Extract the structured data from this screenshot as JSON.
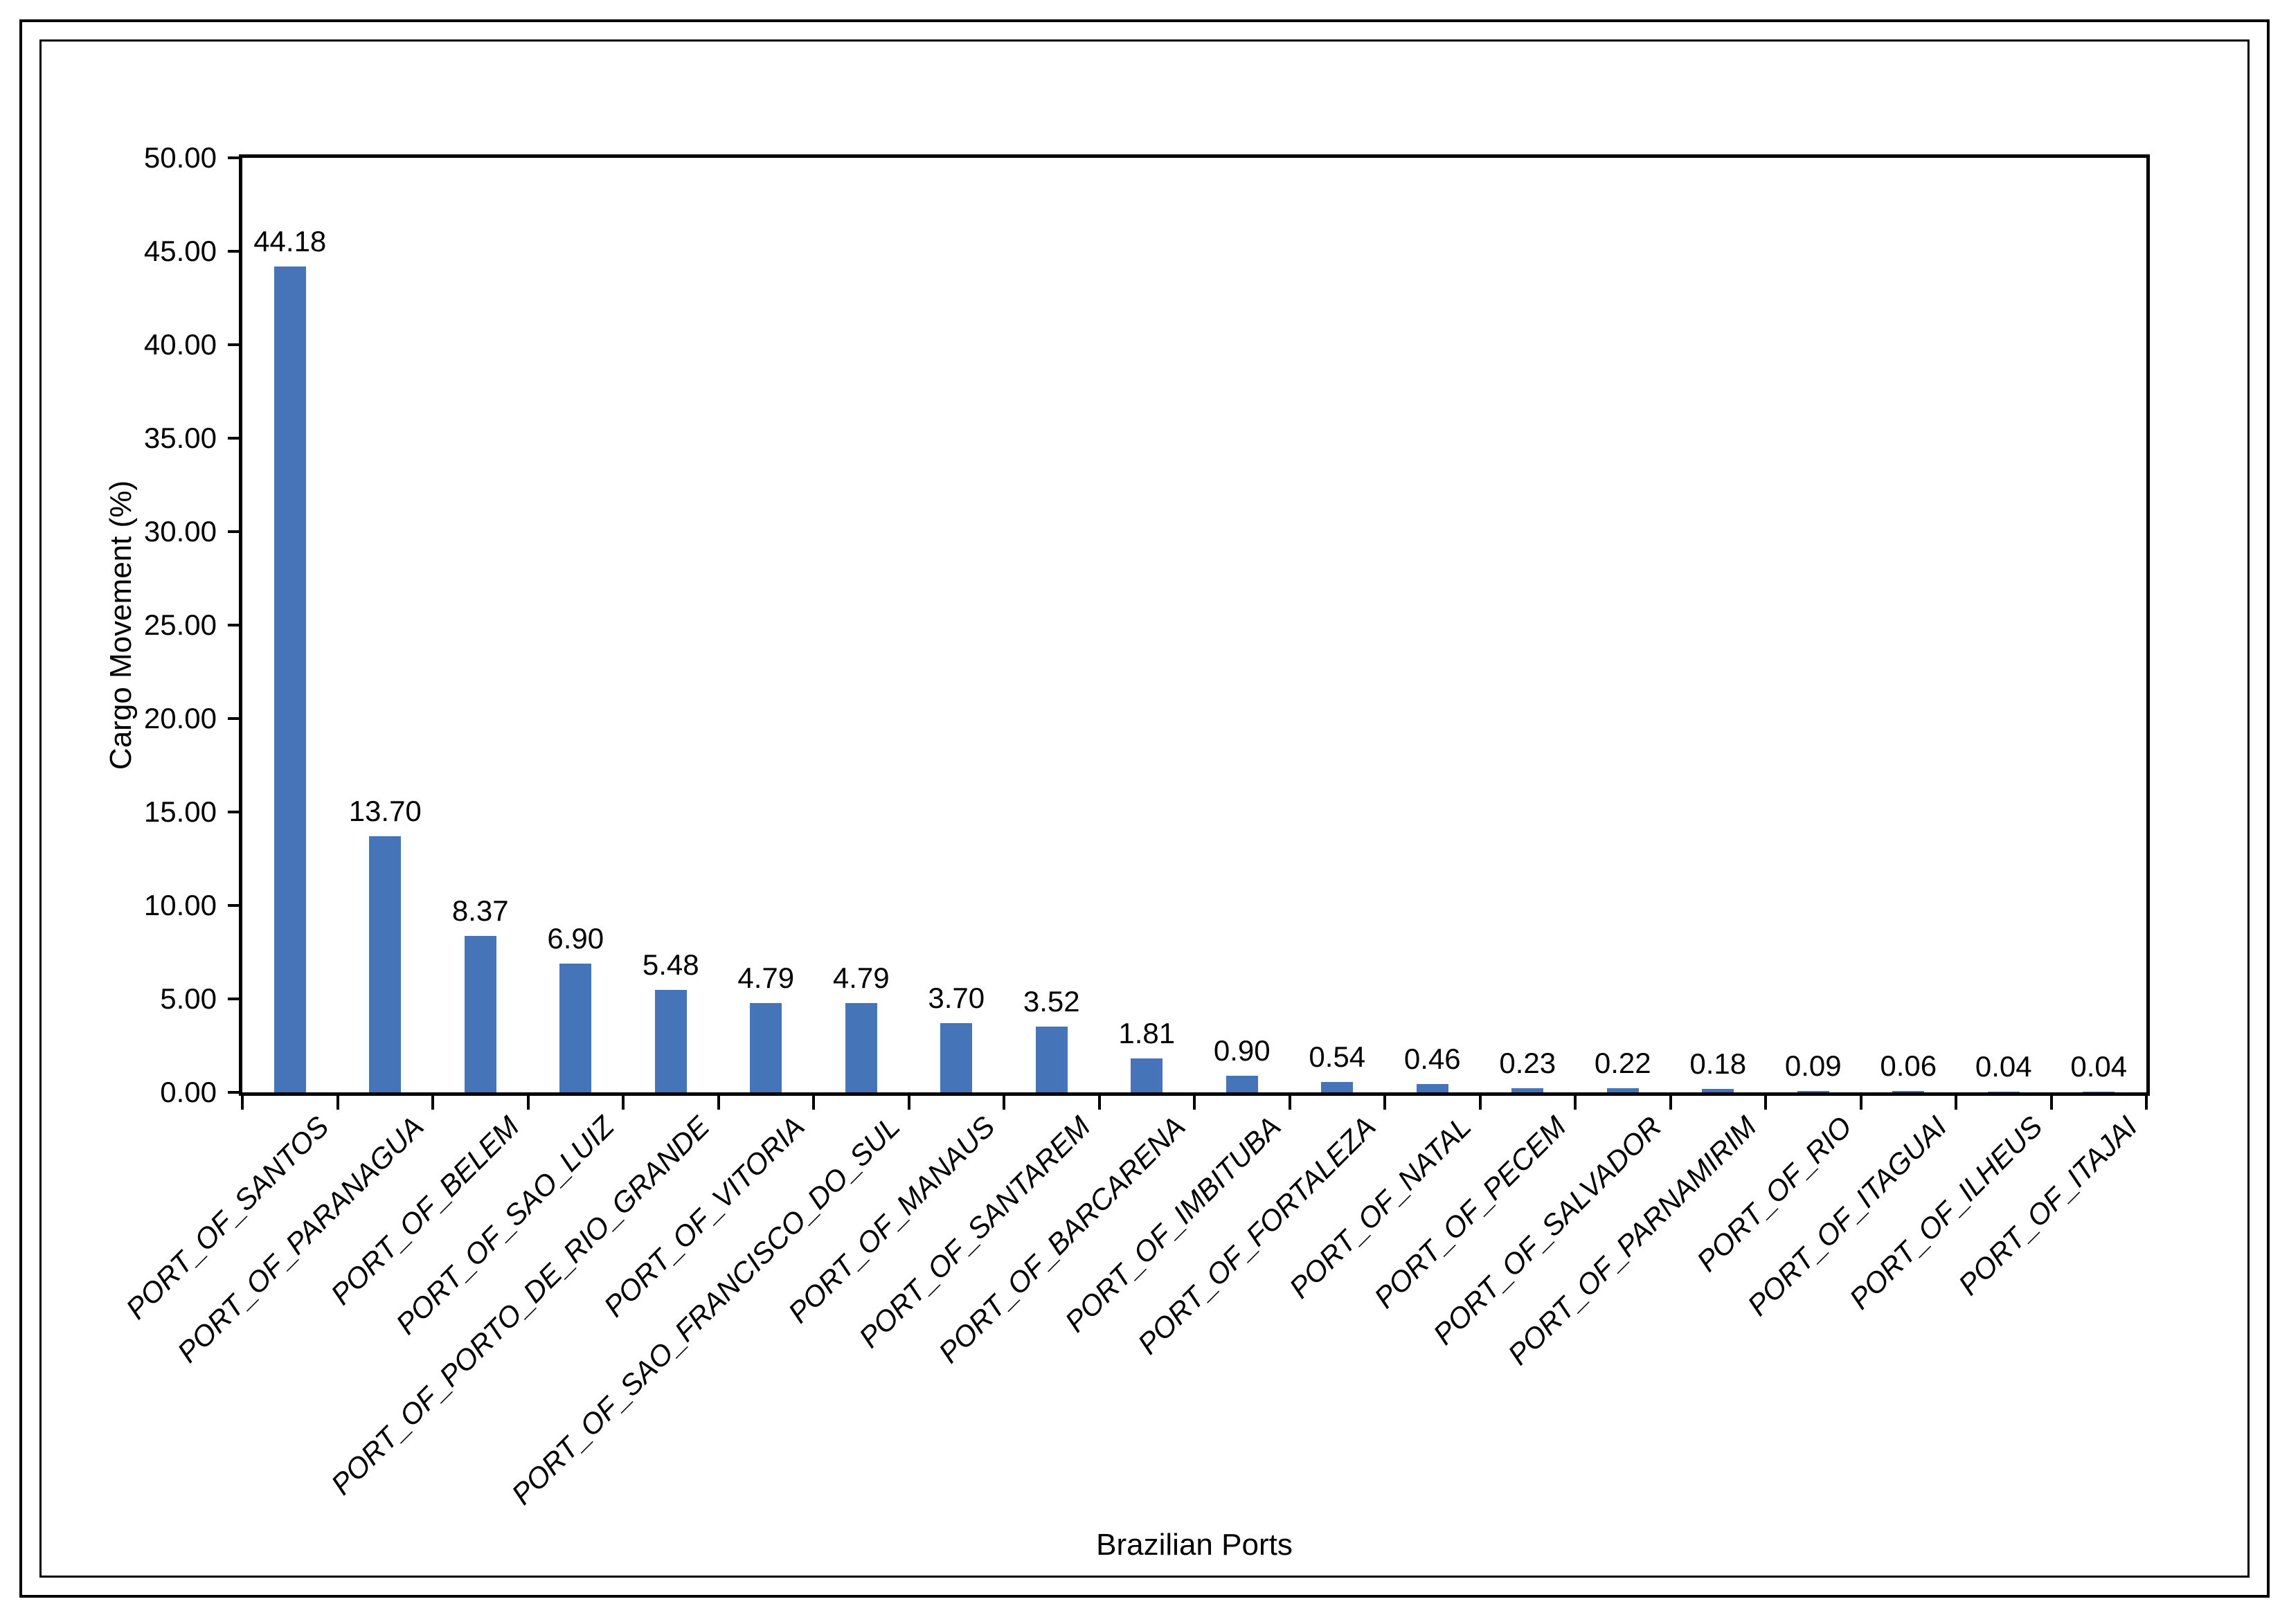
{
  "chart_data": {
    "type": "bar",
    "title": "",
    "xlabel": "Brazilian Ports",
    "ylabel": "Cargo Movement (%)",
    "categories": [
      "PORT_OF_SANTOS",
      "PORT_OF_PARANAGUA",
      "PORT_OF_BELEM",
      "PORT_OF_SAO_LUIZ",
      "PORT_OF_PORTO_DE_RIO_GRANDE",
      "PORT_OF_VITORIA",
      "PORT_OF_SAO_FRANCISCO_DO_SUL",
      "PORT_OF_MANAUS",
      "PORT_OF_SANTAREM",
      "PORT_OF_BARCARENA",
      "PORT_OF_IMBITUBA",
      "PORT_OF_FORTALEZA",
      "PORT_OF_NATAL",
      "PORT_OF_PECEM",
      "PORT_OF_SALVADOR",
      "PORT_OF_PARNAMIRIM",
      "PORT_OF_RIO",
      "PORT_OF_ITAGUAI",
      "PORT_OF_ILHEUS",
      "PORT_OF_ITAJAI"
    ],
    "values": [
      44.18,
      13.7,
      8.37,
      6.9,
      5.48,
      4.79,
      4.79,
      3.7,
      3.52,
      1.81,
      0.9,
      0.54,
      0.46,
      0.23,
      0.22,
      0.18,
      0.09,
      0.06,
      0.04,
      0.04
    ],
    "value_labels": [
      "44.18",
      "13.70",
      "8.37",
      "6.90",
      "5.48",
      "4.79",
      "4.79",
      "3.70",
      "3.52",
      "1.81",
      "0.90",
      "0.54",
      "0.46",
      "0.23",
      "0.22",
      "0.18",
      "0.09",
      "0.06",
      "0.04",
      "0.04"
    ],
    "ylim": [
      0,
      50
    ],
    "ytick_step": 5,
    "ytick_labels": [
      "0.00",
      "5.00",
      "10.00",
      "15.00",
      "20.00",
      "25.00",
      "30.00",
      "35.00",
      "40.00",
      "45.00",
      "50.00"
    ],
    "bar_color": "#4674B9",
    "axis_color": "#000000",
    "grid": "off",
    "legend": "none"
  }
}
